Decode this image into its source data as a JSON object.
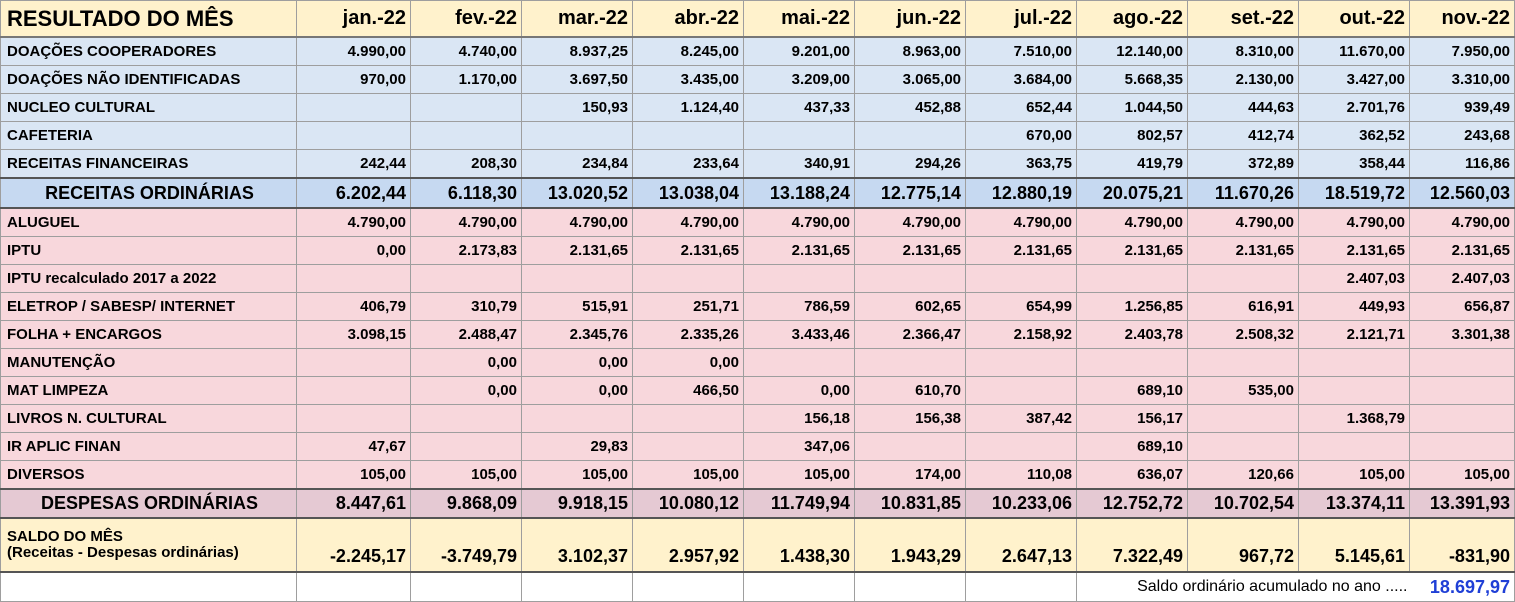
{
  "title": "RESULTADO DO MÊS",
  "months": [
    "jan.-22",
    "fev.-22",
    "mar.-22",
    "abr.-22",
    "mai.-22",
    "jun.-22",
    "jul.-22",
    "ago.-22",
    "set.-22",
    "out.-22",
    "nov.-22"
  ],
  "income_rows": [
    {
      "label": "DOAÇÕES COOPERADORES",
      "values": [
        "4.990,00",
        "4.740,00",
        "8.937,25",
        "8.245,00",
        "9.201,00",
        "8.963,00",
        "7.510,00",
        "12.140,00",
        "8.310,00",
        "11.670,00",
        "7.950,00"
      ]
    },
    {
      "label": "DOAÇÕES NÃO IDENTIFICADAS",
      "values": [
        "970,00",
        "1.170,00",
        "3.697,50",
        "3.435,00",
        "3.209,00",
        "3.065,00",
        "3.684,00",
        "5.668,35",
        "2.130,00",
        "3.427,00",
        "3.310,00"
      ]
    },
    {
      "label": "NUCLEO CULTURAL",
      "values": [
        "",
        "",
        "150,93",
        "1.124,40",
        "437,33",
        "452,88",
        "652,44",
        "1.044,50",
        "444,63",
        "2.701,76",
        "939,49"
      ]
    },
    {
      "label": "CAFETERIA",
      "values": [
        "",
        "",
        "",
        "",
        "",
        "",
        "670,00",
        "802,57",
        "412,74",
        "362,52",
        "243,68"
      ]
    },
    {
      "label": "RECEITAS FINANCEIRAS",
      "values": [
        "242,44",
        "208,30",
        "234,84",
        "233,64",
        "340,91",
        "294,26",
        "363,75",
        "419,79",
        "372,89",
        "358,44",
        "116,86"
      ]
    }
  ],
  "income_total": {
    "label": "RECEITAS ORDINÁRIAS",
    "values": [
      "6.202,44",
      "6.118,30",
      "13.020,52",
      "13.038,04",
      "13.188,24",
      "12.775,14",
      "12.880,19",
      "20.075,21",
      "11.670,26",
      "18.519,72",
      "12.560,03"
    ]
  },
  "expense_rows": [
    {
      "label": "ALUGUEL",
      "values": [
        "4.790,00",
        "4.790,00",
        "4.790,00",
        "4.790,00",
        "4.790,00",
        "4.790,00",
        "4.790,00",
        "4.790,00",
        "4.790,00",
        "4.790,00",
        "4.790,00"
      ]
    },
    {
      "label": "IPTU",
      "values": [
        "0,00",
        "2.173,83",
        "2.131,65",
        "2.131,65",
        "2.131,65",
        "2.131,65",
        "2.131,65",
        "2.131,65",
        "2.131,65",
        "2.131,65",
        "2.131,65"
      ]
    },
    {
      "label": "IPTU recalculado 2017 a 2022",
      "values": [
        "",
        "",
        "",
        "",
        "",
        "",
        "",
        "",
        "",
        "2.407,03",
        "2.407,03"
      ]
    },
    {
      "label": "ELETROP / SABESP/ INTERNET",
      "values": [
        "406,79",
        "310,79",
        "515,91",
        "251,71",
        "786,59",
        "602,65",
        "654,99",
        "1.256,85",
        "616,91",
        "449,93",
        "656,87"
      ]
    },
    {
      "label": "FOLHA + ENCARGOS",
      "values": [
        "3.098,15",
        "2.488,47",
        "2.345,76",
        "2.335,26",
        "3.433,46",
        "2.366,47",
        "2.158,92",
        "2.403,78",
        "2.508,32",
        "2.121,71",
        "3.301,38"
      ]
    },
    {
      "label": "MANUTENÇÃO",
      "values": [
        "",
        "0,00",
        "0,00",
        "0,00",
        "",
        "",
        "",
        "",
        "",
        "",
        ""
      ]
    },
    {
      "label": "MAT LIMPEZA",
      "values": [
        "",
        "0,00",
        "0,00",
        "466,50",
        "0,00",
        "610,70",
        "",
        "689,10",
        "535,00",
        "",
        ""
      ]
    },
    {
      "label": "LIVROS N. CULTURAL",
      "values": [
        "",
        "",
        "",
        "",
        "156,18",
        "156,38",
        "387,42",
        "156,17",
        "",
        "1.368,79",
        ""
      ]
    },
    {
      "label": "IR APLIC FINAN",
      "values": [
        "47,67",
        "",
        "29,83",
        "",
        "347,06",
        "",
        "",
        "689,10",
        "",
        "",
        ""
      ]
    },
    {
      "label": "DIVERSOS",
      "values": [
        "105,00",
        "105,00",
        "105,00",
        "105,00",
        "105,00",
        "174,00",
        "110,08",
        "636,07",
        "120,66",
        "105,00",
        "105,00"
      ]
    }
  ],
  "expense_total": {
    "label": "DESPESAS ORDINÁRIAS",
    "values": [
      "8.447,61",
      "9.868,09",
      "9.918,15",
      "10.080,12",
      "11.749,94",
      "10.831,85",
      "10.233,06",
      "12.752,72",
      "10.702,54",
      "13.374,11",
      "13.391,93"
    ]
  },
  "saldo": {
    "label": "SALDO DO MÊS",
    "sublabel": "(Receitas - Despesas ordinárias)",
    "values": [
      "-2.245,17",
      "-3.749,79",
      "3.102,37",
      "2.957,92",
      "1.438,30",
      "1.943,29",
      "2.647,13",
      "7.322,49",
      "967,72",
      "5.145,61",
      "-831,90"
    ]
  },
  "accumulated": {
    "label": "Saldo ordinário acumulado no ano .....",
    "value": "18.697,97",
    "value_color": "#1f3fd6"
  },
  "colors": {
    "header_bg": "#fff2cc",
    "income_bg": "#dae6f4",
    "income_total_bg": "#c6d9f1",
    "expense_bg": "#f8d7dc",
    "expense_total_bg": "#e5c9d3"
  }
}
